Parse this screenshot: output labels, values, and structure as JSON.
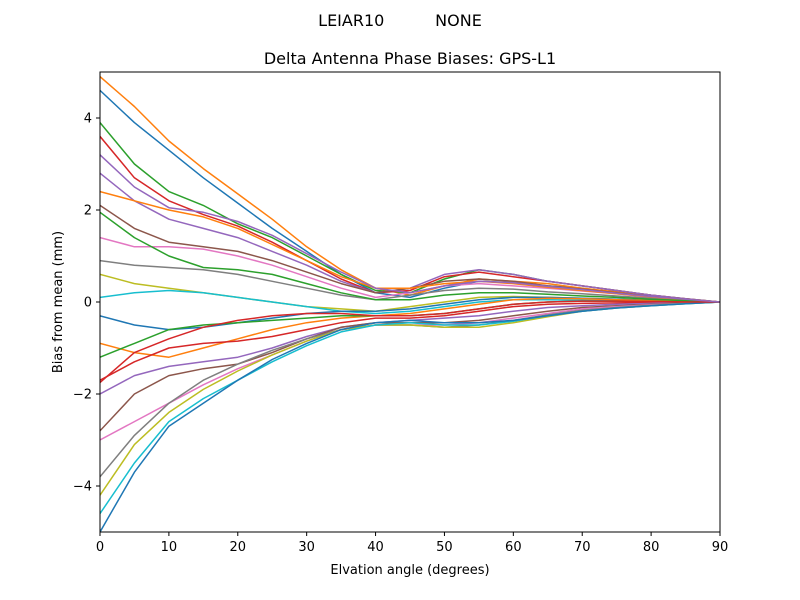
{
  "figure": {
    "suptitle": "LEIAR10          NONE"
  },
  "chart_data": {
    "type": "line",
    "title": "Delta Antenna Phase Biases: GPS-L1",
    "xlabel": "Elvation angle (degrees)",
    "ylabel": "Bias from mean (mm)",
    "xlim": [
      0,
      90
    ],
    "ylim": [
      -5,
      5
    ],
    "xticks": [
      0,
      10,
      20,
      30,
      40,
      50,
      60,
      70,
      80,
      90
    ],
    "yticks": [
      -4,
      -2,
      0,
      2,
      4
    ],
    "ytick_labels": [
      "−4",
      "−2",
      "0",
      "2",
      "4"
    ],
    "grid": false,
    "legend": false,
    "x": [
      0,
      5,
      10,
      15,
      20,
      25,
      30,
      35,
      40,
      45,
      50,
      55,
      60,
      65,
      70,
      75,
      80,
      85,
      90
    ],
    "colors": [
      "#1f77b4",
      "#ff7f0e",
      "#2ca02c",
      "#d62728",
      "#9467bd",
      "#8c564b",
      "#e377c2",
      "#7f7f7f",
      "#bcbd22",
      "#17becf"
    ],
    "series": [
      {
        "values": [
          4.6,
          3.9,
          3.3,
          2.7,
          2.15,
          1.6,
          1.1,
          0.6,
          0.2,
          0.1,
          0.3,
          0.45,
          0.42,
          0.35,
          0.3,
          0.2,
          0.12,
          0.05,
          0
        ]
      },
      {
        "values": [
          4.9,
          4.25,
          3.5,
          2.9,
          2.35,
          1.8,
          1.2,
          0.7,
          0.3,
          0.15,
          0.35,
          0.5,
          0.45,
          0.4,
          0.3,
          0.22,
          0.13,
          0.06,
          0
        ]
      },
      {
        "values": [
          3.9,
          3.0,
          2.4,
          2.1,
          1.7,
          1.4,
          1.0,
          0.6,
          0.25,
          0.2,
          0.5,
          0.7,
          0.6,
          0.45,
          0.35,
          0.25,
          0.15,
          0.07,
          0
        ]
      },
      {
        "values": [
          3.6,
          2.7,
          2.2,
          1.9,
          1.65,
          1.3,
          0.9,
          0.5,
          0.2,
          0.25,
          0.55,
          0.65,
          0.55,
          0.45,
          0.35,
          0.25,
          0.15,
          0.07,
          0
        ]
      },
      {
        "values": [
          2.8,
          2.2,
          1.8,
          1.6,
          1.4,
          1.1,
          0.8,
          0.45,
          0.2,
          0.3,
          0.6,
          0.7,
          0.6,
          0.45,
          0.35,
          0.25,
          0.15,
          0.07,
          0
        ]
      },
      {
        "values": [
          2.1,
          1.6,
          1.3,
          1.2,
          1.1,
          0.9,
          0.65,
          0.4,
          0.2,
          0.3,
          0.45,
          0.5,
          0.45,
          0.35,
          0.28,
          0.2,
          0.12,
          0.06,
          0
        ]
      },
      {
        "values": [
          1.4,
          1.2,
          1.2,
          1.15,
          1.0,
          0.8,
          0.55,
          0.3,
          0.1,
          0.2,
          0.35,
          0.4,
          0.35,
          0.3,
          0.24,
          0.18,
          0.1,
          0.05,
          0
        ]
      },
      {
        "values": [
          0.9,
          0.8,
          0.75,
          0.7,
          0.6,
          0.45,
          0.3,
          0.15,
          0.05,
          0.15,
          0.25,
          0.3,
          0.28,
          0.22,
          0.18,
          0.13,
          0.08,
          0.04,
          0
        ]
      },
      {
        "values": [
          0.6,
          0.4,
          0.3,
          0.2,
          0.1,
          0.0,
          -0.1,
          -0.15,
          -0.2,
          -0.1,
          0.0,
          0.1,
          0.12,
          0.1,
          0.08,
          0.06,
          0.04,
          0.02,
          0
        ]
      },
      {
        "values": [
          0.1,
          0.2,
          0.25,
          0.2,
          0.1,
          0.0,
          -0.1,
          -0.2,
          -0.25,
          -0.2,
          -0.1,
          0.0,
          0.05,
          0.05,
          0.04,
          0.03,
          0.02,
          0.01,
          0
        ]
      },
      {
        "values": [
          -0.3,
          -0.5,
          -0.6,
          -0.55,
          -0.45,
          -0.35,
          -0.25,
          -0.2,
          -0.2,
          -0.15,
          -0.05,
          0.05,
          0.1,
          0.1,
          0.08,
          0.06,
          0.04,
          0.02,
          0
        ]
      },
      {
        "values": [
          -0.9,
          -1.1,
          -1.2,
          -1.0,
          -0.8,
          -0.6,
          -0.45,
          -0.35,
          -0.3,
          -0.25,
          -0.15,
          -0.05,
          0.05,
          0.08,
          0.07,
          0.05,
          0.03,
          0.02,
          0
        ]
      },
      {
        "values": [
          -1.2,
          -0.9,
          -0.6,
          -0.5,
          -0.45,
          -0.4,
          -0.35,
          -0.3,
          -0.3,
          -0.3,
          -0.25,
          -0.15,
          -0.05,
          0.0,
          0.02,
          0.02,
          0.01,
          0.0,
          0
        ]
      },
      {
        "values": [
          -1.7,
          -1.3,
          -1.0,
          -0.9,
          -0.85,
          -0.75,
          -0.6,
          -0.45,
          -0.35,
          -0.35,
          -0.3,
          -0.2,
          -0.1,
          -0.05,
          -0.03,
          -0.02,
          -0.01,
          0.0,
          0
        ]
      },
      {
        "values": [
          -2.0,
          -1.6,
          -1.4,
          -1.3,
          -1.2,
          -1.0,
          -0.75,
          -0.55,
          -0.45,
          -0.4,
          -0.35,
          -0.3,
          -0.2,
          -0.12,
          -0.08,
          -0.05,
          -0.03,
          -0.01,
          0
        ]
      },
      {
        "values": [
          -2.8,
          -2.0,
          -1.6,
          -1.45,
          -1.35,
          -1.1,
          -0.8,
          -0.55,
          -0.45,
          -0.45,
          -0.45,
          -0.4,
          -0.3,
          -0.2,
          -0.12,
          -0.08,
          -0.05,
          -0.02,
          0
        ]
      },
      {
        "values": [
          -3.0,
          -2.6,
          -2.2,
          -1.8,
          -1.45,
          -1.15,
          -0.85,
          -0.6,
          -0.5,
          -0.5,
          -0.5,
          -0.45,
          -0.35,
          -0.25,
          -0.15,
          -0.1,
          -0.06,
          -0.03,
          0
        ]
      },
      {
        "values": [
          -3.8,
          -2.9,
          -2.2,
          -1.7,
          -1.35,
          -1.05,
          -0.8,
          -0.6,
          -0.5,
          -0.5,
          -0.55,
          -0.5,
          -0.4,
          -0.28,
          -0.18,
          -0.12,
          -0.07,
          -0.03,
          0
        ]
      },
      {
        "values": [
          -4.2,
          -3.1,
          -2.4,
          -1.9,
          -1.5,
          -1.15,
          -0.85,
          -0.6,
          -0.5,
          -0.5,
          -0.55,
          -0.55,
          -0.45,
          -0.32,
          -0.2,
          -0.13,
          -0.08,
          -0.04,
          0
        ]
      },
      {
        "values": [
          -4.6,
          -3.5,
          -2.6,
          -2.1,
          -1.7,
          -1.3,
          -0.95,
          -0.65,
          -0.5,
          -0.45,
          -0.5,
          -0.5,
          -0.42,
          -0.3,
          -0.2,
          -0.13,
          -0.08,
          -0.04,
          0
        ]
      },
      {
        "values": [
          -5.0,
          -3.7,
          -2.7,
          -2.2,
          -1.7,
          -1.25,
          -0.9,
          -0.6,
          -0.45,
          -0.4,
          -0.45,
          -0.45,
          -0.4,
          -0.3,
          -0.2,
          -0.13,
          -0.08,
          -0.04,
          0
        ]
      },
      {
        "values": [
          2.4,
          2.2,
          2.0,
          1.85,
          1.6,
          1.25,
          0.9,
          0.55,
          0.3,
          0.3,
          0.4,
          0.45,
          0.4,
          0.32,
          0.25,
          0.18,
          0.11,
          0.05,
          0
        ]
      },
      {
        "values": [
          1.95,
          1.4,
          1.0,
          0.75,
          0.7,
          0.6,
          0.4,
          0.2,
          0.05,
          0.05,
          0.15,
          0.2,
          0.2,
          0.17,
          0.13,
          0.1,
          0.06,
          0.03,
          0
        ]
      },
      {
        "values": [
          -1.75,
          -1.1,
          -0.8,
          -0.55,
          -0.4,
          -0.3,
          -0.25,
          -0.25,
          -0.3,
          -0.3,
          -0.25,
          -0.15,
          -0.05,
          0.0,
          0.02,
          0.02,
          0.01,
          0.0,
          0
        ]
      },
      {
        "values": [
          3.2,
          2.5,
          2.05,
          1.95,
          1.75,
          1.45,
          1.05,
          0.65,
          0.3,
          0.2,
          0.35,
          0.45,
          0.42,
          0.34,
          0.27,
          0.19,
          0.12,
          0.06,
          0
        ]
      }
    ]
  }
}
